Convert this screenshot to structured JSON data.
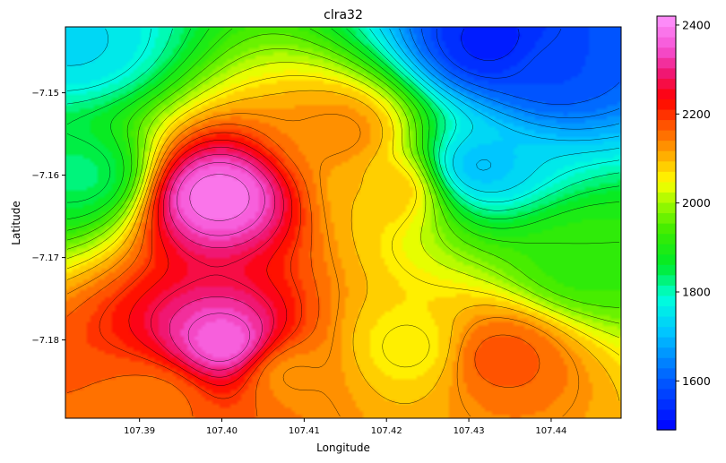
{
  "chart_data": {
    "type": "heatmap",
    "title": "clra32",
    "xlabel": "Longitude",
    "ylabel": "Latitude",
    "xlim": [
      107.381,
      107.4485
    ],
    "ylim": [
      -7.1895,
      -7.142
    ],
    "x_ticks": [
      107.39,
      107.4,
      107.41,
      107.42,
      107.43,
      107.44
    ],
    "x_tick_labels": [
      "107.39",
      "107.40",
      "107.41",
      "107.42",
      "107.43",
      "107.44"
    ],
    "y_ticks": [
      -7.15,
      -7.16,
      -7.17,
      -7.18
    ],
    "y_tick_labels": [
      "−7.15",
      "−7.16",
      "−7.17",
      "−7.18"
    ],
    "colorbar": {
      "colormap": "gist_ncar-like rainbow (blue-cyan-green-yellow-orange-red-magenta-pink)",
      "range": [
        1490,
        2420
      ],
      "ticks": [
        1600,
        1800,
        2000,
        2200,
        2400
      ],
      "tick_labels": [
        "1600",
        "1800",
        "2000",
        "2200",
        "2400"
      ],
      "levels": 40
    },
    "contour_lines": true,
    "grid": false,
    "features": [
      {
        "x": 107.3995,
        "y": -7.1625,
        "value": 2400
      },
      {
        "x": 107.4005,
        "y": -7.1805,
        "value": 2380
      },
      {
        "x": 107.4335,
        "y": -7.182,
        "value": 2180
      },
      {
        "x": 107.4205,
        "y": -7.1615,
        "value": 2100
      },
      {
        "x": 107.4145,
        "y": -7.155,
        "value": 2140
      },
      {
        "x": 107.433,
        "y": -7.144,
        "value": 1520
      },
      {
        "x": 107.44,
        "y": -7.147,
        "value": 1580
      },
      {
        "x": 107.431,
        "y": -7.159,
        "value": 1700
      },
      {
        "x": 107.382,
        "y": -7.144,
        "value": 1740
      },
      {
        "x": 107.383,
        "y": -7.16,
        "value": 1830
      },
      {
        "x": 107.444,
        "y": -7.1705,
        "value": 1920
      },
      {
        "x": 107.392,
        "y": -7.187,
        "value": 2150
      },
      {
        "x": 107.423,
        "y": -7.181,
        "value": 2050
      },
      {
        "x": 107.408,
        "y": -7.184,
        "value": 2120
      }
    ]
  }
}
